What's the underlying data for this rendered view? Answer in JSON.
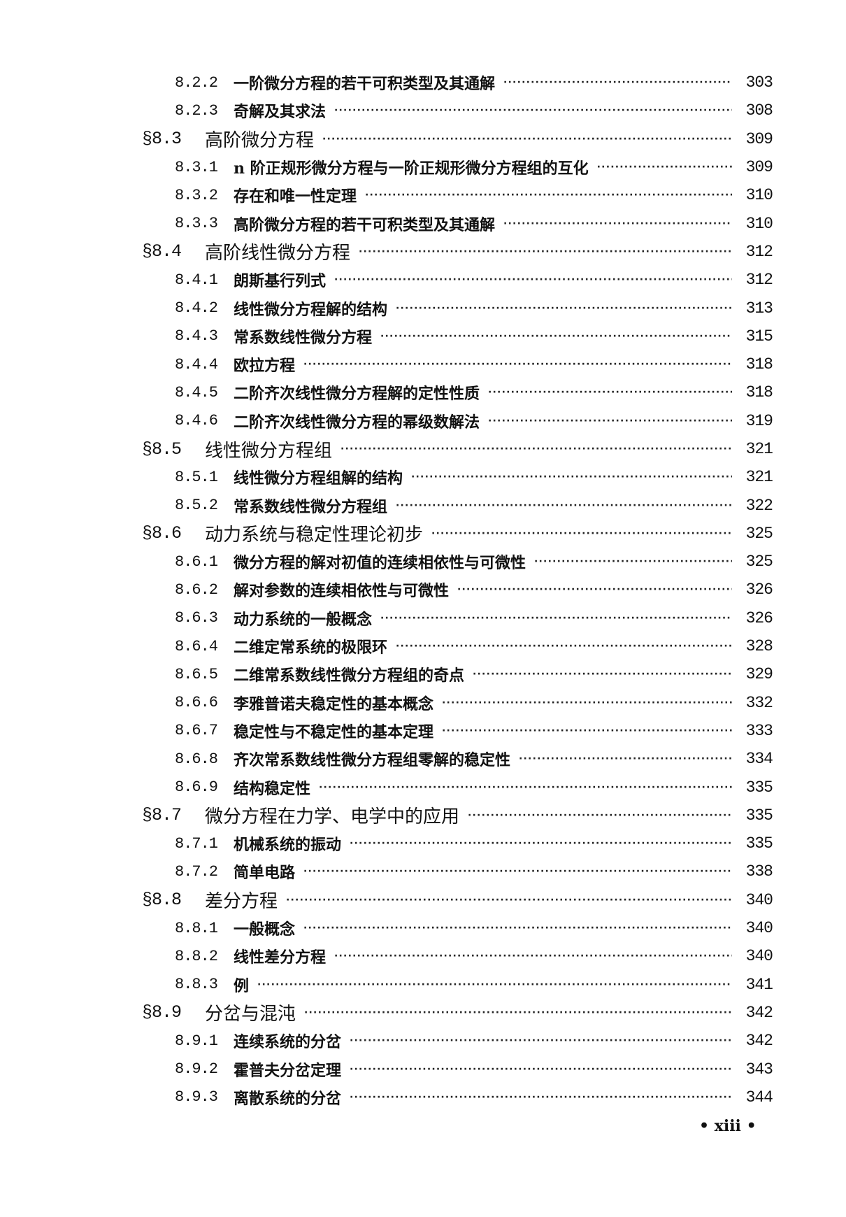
{
  "entries": [
    {
      "level": "sub",
      "number": "8.2.2",
      "title": "一阶微分方程的若干可积类型及其通解",
      "page": "303"
    },
    {
      "level": "sub",
      "number": "8.2.3",
      "title": "奇解及其求法",
      "page": "308"
    },
    {
      "level": "sec",
      "number": "§8.3",
      "title": "高阶微分方程",
      "page": "309"
    },
    {
      "level": "sub",
      "number": "8.3.1",
      "title": "n 阶正规形微分方程与一阶正规形微分方程组的互化",
      "page": "309"
    },
    {
      "level": "sub",
      "number": "8.3.2",
      "title": "存在和唯一性定理",
      "page": "310"
    },
    {
      "level": "sub",
      "number": "8.3.3",
      "title": "高阶微分方程的若干可积类型及其通解",
      "page": "310"
    },
    {
      "level": "sec",
      "number": "§8.4",
      "title": "高阶线性微分方程",
      "page": "312"
    },
    {
      "level": "sub",
      "number": "8.4.1",
      "title": "朗斯基行列式",
      "page": "312"
    },
    {
      "level": "sub",
      "number": "8.4.2",
      "title": "线性微分方程解的结构",
      "page": "313"
    },
    {
      "level": "sub",
      "number": "8.4.3",
      "title": "常系数线性微分方程",
      "page": "315"
    },
    {
      "level": "sub",
      "number": "8.4.4",
      "title": "欧拉方程",
      "page": "318"
    },
    {
      "level": "sub",
      "number": "8.4.5",
      "title": "二阶齐次线性微分方程解的定性性质",
      "page": "318"
    },
    {
      "level": "sub",
      "number": "8.4.6",
      "title": "二阶齐次线性微分方程的幂级数解法",
      "page": "319"
    },
    {
      "level": "sec",
      "number": "§8.5",
      "title": "线性微分方程组",
      "page": "321"
    },
    {
      "level": "sub",
      "number": "8.5.1",
      "title": "线性微分方程组解的结构",
      "page": "321"
    },
    {
      "level": "sub",
      "number": "8.5.2",
      "title": "常系数线性微分方程组",
      "page": "322"
    },
    {
      "level": "sec",
      "number": "§8.6",
      "title": "动力系统与稳定性理论初步",
      "page": "325"
    },
    {
      "level": "sub",
      "number": "8.6.1",
      "title": "微分方程的解对初值的连续相依性与可微性",
      "page": "325"
    },
    {
      "level": "sub",
      "number": "8.6.2",
      "title": "解对参数的连续相依性与可微性",
      "page": "326"
    },
    {
      "level": "sub",
      "number": "8.6.3",
      "title": "动力系统的一般概念",
      "page": "326"
    },
    {
      "level": "sub",
      "number": "8.6.4",
      "title": "二维定常系统的极限环",
      "page": "328"
    },
    {
      "level": "sub",
      "number": "8.6.5",
      "title": "二维常系数线性微分方程组的奇点",
      "page": "329"
    },
    {
      "level": "sub",
      "number": "8.6.6",
      "title": "李雅普诺夫稳定性的基本概念",
      "page": "332"
    },
    {
      "level": "sub",
      "number": "8.6.7",
      "title": "稳定性与不稳定性的基本定理",
      "page": "333"
    },
    {
      "level": "sub",
      "number": "8.6.8",
      "title": "齐次常系数线性微分方程组零解的稳定性",
      "page": "334"
    },
    {
      "level": "sub",
      "number": "8.6.9",
      "title": "结构稳定性",
      "page": "335"
    },
    {
      "level": "sec",
      "number": "§8.7",
      "title": "微分方程在力学、电学中的应用",
      "page": "335"
    },
    {
      "level": "sub",
      "number": "8.7.1",
      "title": "机械系统的振动",
      "page": "335"
    },
    {
      "level": "sub",
      "number": "8.7.2",
      "title": "简单电路",
      "page": "338"
    },
    {
      "level": "sec",
      "number": "§8.8",
      "title": "差分方程",
      "page": "340"
    },
    {
      "level": "sub",
      "number": "8.8.1",
      "title": "一般概念",
      "page": "340"
    },
    {
      "level": "sub",
      "number": "8.8.2",
      "title": "线性差分方程",
      "page": "340"
    },
    {
      "level": "sub",
      "number": "8.8.3",
      "title": "例",
      "page": "341"
    },
    {
      "level": "sec",
      "number": "§8.9",
      "title": "分岔与混沌",
      "page": "342"
    },
    {
      "level": "sub",
      "number": "8.9.1",
      "title": "连续系统的分岔",
      "page": "342"
    },
    {
      "level": "sub",
      "number": "8.9.2",
      "title": "霍普夫分岔定理",
      "page": "343"
    },
    {
      "level": "sub",
      "number": "8.9.3",
      "title": "离散系统的分岔",
      "page": "344"
    }
  ],
  "folio": "• xiii •"
}
